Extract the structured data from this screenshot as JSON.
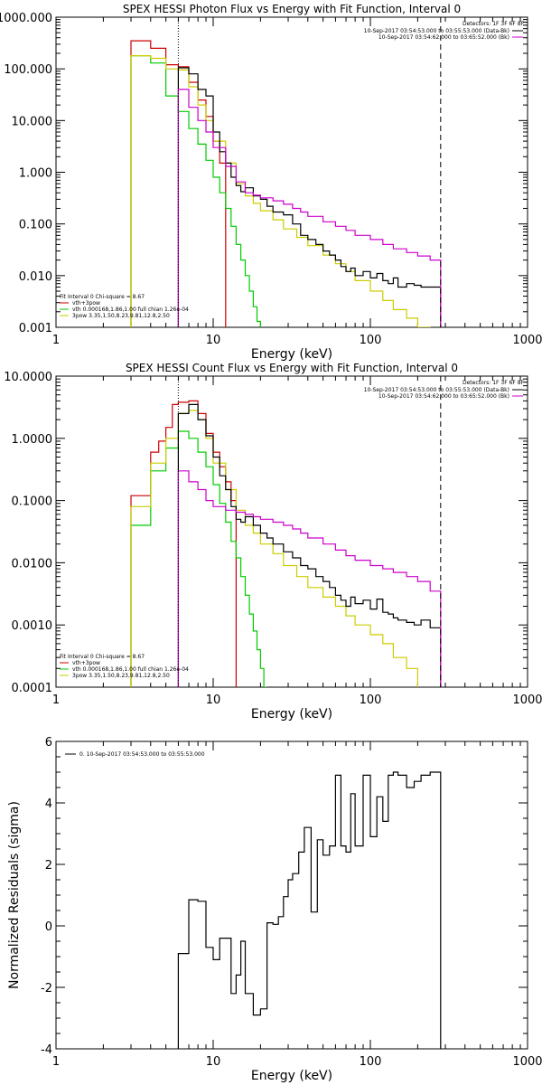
{
  "chart_data": [
    {
      "type": "line",
      "title": "SPEX HESSI Photon Flux vs Energy with Fit Function, Interval 0",
      "xlabel": "Energy (keV)",
      "ylabel": "",
      "xscale": "log",
      "yscale": "log",
      "xlim": [
        1,
        1000
      ],
      "ylim": [
        0.001,
        1000
      ],
      "x_tick_labels": [
        "1",
        "10",
        "100",
        "1000"
      ],
      "y_tick_labels": [
        "0.001",
        "0.010",
        "0.100",
        "1.000",
        "10.000",
        "100.000",
        "1000.000"
      ],
      "legend_top_right": {
        "header": "Detectors: 1F 3F 6F 8F",
        "entries": [
          {
            "text": "10-Sep-2017 03:54:53.000 to 03:55:53.000 (Data-Bk)",
            "color": "#000000"
          },
          {
            "text": "10-Sep-2017 03:54:62.000 to 03:65:52.000 (Bk)",
            "color": "#cc00cc"
          }
        ]
      },
      "legend_bottom_left": {
        "header": "Fit Interval 0   Chi-square = 8.67",
        "entries": [
          {
            "text": "vth+3pow",
            "color": "#cc0000"
          },
          {
            "text": "vth 0.000168,1.86,1.00  full chian 1.26e-04",
            "color": "#00cc00"
          },
          {
            "text": "3pow 3.35,1.50,8.23,9.81,12.8,2.50",
            "color": "#cccc00"
          }
        ]
      },
      "vlines": [
        {
          "x": 6,
          "style": "dotted",
          "color": "#000000"
        },
        {
          "x": 280,
          "style": "dashed",
          "color": "#000000"
        }
      ],
      "series": [
        {
          "name": "vth+3pow",
          "color": "#cc0000",
          "edges": [
            3,
            4,
            5,
            6,
            7,
            8,
            9,
            10,
            11,
            12
          ],
          "values": [
            350,
            250,
            120,
            110,
            55,
            25,
            12,
            4,
            1.5
          ]
        },
        {
          "name": "vth 0.000168,1.86,1.00  full chian 1.26e-04",
          "color": "#00cc00",
          "edges": [
            3,
            4,
            5,
            6,
            7,
            8,
            9,
            10,
            11,
            12,
            13,
            14,
            15,
            16,
            17,
            18,
            19,
            20,
            21,
            22
          ],
          "values": [
            180,
            130,
            30,
            15,
            7,
            3.5,
            1.7,
            0.8,
            0.4,
            0.2,
            0.09,
            0.04,
            0.02,
            0.01,
            0.005,
            0.0025,
            0.0013,
            0.0009,
            0.0005
          ]
        },
        {
          "name": "3pow 3.35,1.50,8.23,9.81,12.8,2.50",
          "color": "#cccc00",
          "edges": [
            3,
            4,
            5,
            6,
            7,
            8,
            9,
            10,
            12,
            14,
            16,
            18,
            20,
            24,
            28,
            34,
            40,
            50,
            60,
            70,
            80,
            100,
            120,
            140,
            170,
            200,
            240,
            280
          ],
          "values": [
            180,
            160,
            100,
            95,
            45,
            20,
            10,
            4,
            1.5,
            0.6,
            0.35,
            0.25,
            0.18,
            0.12,
            0.08,
            0.055,
            0.038,
            0.025,
            0.017,
            0.012,
            0.008,
            0.005,
            0.0033,
            0.0022,
            0.0015,
            0.001,
            0.0008
          ]
        },
        {
          "name": "10-Sep-2017 03:54:53.000 to 03:55:53.000 (Data-Bk)",
          "color": "#000000",
          "edges": [
            6,
            7,
            8,
            9,
            10,
            11,
            12,
            13,
            14,
            15,
            16,
            18,
            20,
            22,
            24,
            28,
            32,
            36,
            40,
            45,
            50,
            55,
            60,
            65,
            70,
            75,
            80,
            90,
            100,
            110,
            120,
            130,
            140,
            150,
            170,
            190,
            210,
            240,
            280
          ],
          "values": [
            105,
            80,
            40,
            30,
            6,
            2.5,
            1.5,
            0.8,
            0.55,
            0.42,
            0.5,
            0.35,
            0.3,
            0.22,
            0.17,
            0.15,
            0.1,
            0.06,
            0.05,
            0.04,
            0.03,
            0.025,
            0.02,
            0.015,
            0.012,
            0.014,
            0.01,
            0.012,
            0.009,
            0.011,
            0.008,
            0.007,
            0.009,
            0.006,
            0.007,
            0.0065,
            0.006,
            0.006
          ]
        },
        {
          "name": "10-Sep-2017 03:54:62.000 to 03:65:52.000 (Bk)",
          "color": "#cc00cc",
          "edges": [
            6,
            7,
            8,
            9,
            10,
            12,
            14,
            16,
            18,
            20,
            24,
            28,
            32,
            36,
            40,
            50,
            60,
            70,
            80,
            100,
            120,
            140,
            170,
            200,
            240,
            280
          ],
          "values": [
            40,
            18,
            10,
            6,
            3,
            1.3,
            0.65,
            0.4,
            0.36,
            0.32,
            0.28,
            0.24,
            0.2,
            0.17,
            0.14,
            0.11,
            0.09,
            0.075,
            0.06,
            0.05,
            0.04,
            0.033,
            0.028,
            0.024,
            0.02
          ]
        }
      ]
    },
    {
      "type": "line",
      "title": "SPEX HESSI Count Flux vs Energy with Fit Function, Interval 0",
      "xlabel": "Energy (keV)",
      "ylabel": "",
      "xscale": "log",
      "yscale": "log",
      "xlim": [
        1,
        1000
      ],
      "ylim": [
        0.0001,
        10
      ],
      "x_tick_labels": [
        "1",
        "10",
        "100",
        "1000"
      ],
      "y_tick_labels": [
        "0.0001",
        "0.0010",
        "0.0100",
        "0.1000",
        "1.0000",
        "10.0000"
      ],
      "legend_top_right": {
        "header": "Detectors: 1F 3F 6F 8F",
        "entries": [
          {
            "text": "10-Sep-2017 03:54:53.000 to 03:55:53.000 (Data-Bk)",
            "color": "#000000"
          },
          {
            "text": "10-Sep-2017 03:54:62.000 to 03:65:52.000 (Bk)",
            "color": "#cc00cc"
          }
        ]
      },
      "legend_bottom_left": {
        "header": "Fit Interval 0   Chi-square = 8.67",
        "entries": [
          {
            "text": "vth+3pow",
            "color": "#cc0000"
          },
          {
            "text": "vth 0.000168,1.86,1.00  full chian 1.26e-04",
            "color": "#00cc00"
          },
          {
            "text": "3pow 3.35,1.50,8.23,9.81,12.8,2.50",
            "color": "#cccc00"
          }
        ]
      },
      "vlines": [
        {
          "x": 6,
          "style": "dotted",
          "color": "#000000"
        },
        {
          "x": 280,
          "style": "dashed",
          "color": "#000000"
        }
      ],
      "series": [
        {
          "name": "vth+3pow",
          "color": "#cc0000",
          "edges": [
            3,
            3.5,
            4,
            4.5,
            5,
            5.5,
            6,
            7,
            8,
            9,
            10,
            11,
            12,
            13,
            14
          ],
          "values": [
            0.12,
            0.12,
            0.6,
            0.9,
            1.5,
            3.5,
            3.8,
            4.0,
            2.5,
            1.2,
            0.6,
            0.35,
            0.2,
            0.1
          ]
        },
        {
          "name": "vth 0.000168,1.86,1.00  full chian 1.26e-04",
          "color": "#00cc00",
          "edges": [
            3,
            4,
            5,
            6,
            7,
            8,
            9,
            10,
            11,
            12,
            13,
            14,
            15,
            16,
            17,
            18,
            19,
            20,
            21,
            22
          ],
          "values": [
            0.04,
            0.3,
            0.7,
            1.3,
            1.0,
            0.6,
            0.35,
            0.18,
            0.09,
            0.045,
            0.022,
            0.012,
            0.006,
            0.003,
            0.0015,
            0.0008,
            0.0004,
            0.0002,
            0.0001
          ]
        },
        {
          "name": "3pow 3.35,1.50,8.23,9.81,12.8,2.50",
          "color": "#cccc00",
          "edges": [
            3,
            4,
            5,
            6,
            7,
            8,
            9,
            10,
            12,
            14,
            16,
            18,
            20,
            24,
            28,
            34,
            40,
            50,
            60,
            70,
            80,
            100,
            120,
            140,
            170,
            200
          ],
          "values": [
            0.08,
            0.4,
            1.0,
            2.5,
            2.8,
            2.0,
            1.0,
            0.4,
            0.15,
            0.07,
            0.04,
            0.03,
            0.02,
            0.014,
            0.009,
            0.006,
            0.004,
            0.0028,
            0.002,
            0.0014,
            0.001,
            0.0007,
            0.0005,
            0.0003,
            0.0002
          ]
        },
        {
          "name": "10-Sep-2017 03:54:53.000 to 03:55:53.000 (Data-Bk)",
          "color": "#000000",
          "edges": [
            6,
            7,
            8,
            9,
            10,
            11,
            12,
            13,
            14,
            15,
            16,
            18,
            20,
            22,
            24,
            28,
            32,
            36,
            40,
            45,
            50,
            55,
            60,
            65,
            70,
            75,
            80,
            90,
            100,
            110,
            120,
            130,
            140,
            150,
            170,
            190,
            210,
            240,
            280
          ],
          "values": [
            2.5,
            3.5,
            2.0,
            1.1,
            0.5,
            0.25,
            0.15,
            0.08,
            0.05,
            0.045,
            0.055,
            0.04,
            0.03,
            0.025,
            0.02,
            0.015,
            0.012,
            0.009,
            0.008,
            0.006,
            0.005,
            0.004,
            0.003,
            0.0025,
            0.002,
            0.0028,
            0.0022,
            0.0025,
            0.0018,
            0.0026,
            0.0016,
            0.0015,
            0.0013,
            0.0012,
            0.0011,
            0.001,
            0.0012,
            0.0009
          ]
        },
        {
          "name": "10-Sep-2017 03:54:62.000 to 03:65:52.000 (Bk)",
          "color": "#cc00cc",
          "edges": [
            6,
            7,
            8,
            9,
            10,
            12,
            14,
            16,
            18,
            20,
            24,
            28,
            32,
            36,
            40,
            50,
            60,
            70,
            80,
            100,
            120,
            140,
            170,
            200,
            240,
            280
          ],
          "values": [
            0.3,
            0.2,
            0.15,
            0.1,
            0.08,
            0.07,
            0.065,
            0.06,
            0.055,
            0.05,
            0.045,
            0.04,
            0.035,
            0.03,
            0.025,
            0.02,
            0.016,
            0.013,
            0.011,
            0.009,
            0.008,
            0.007,
            0.006,
            0.005,
            0.0035
          ]
        }
      ]
    },
    {
      "type": "line",
      "title": "",
      "xlabel": "Energy (keV)",
      "ylabel": "Normalized Residuals (sigma)",
      "xscale": "log",
      "yscale": "linear",
      "xlim": [
        1,
        1000
      ],
      "ylim": [
        -4,
        6
      ],
      "x_tick_labels": [
        "1",
        "10",
        "100",
        "1000"
      ],
      "y_tick_labels": [
        "-4",
        "-2",
        "0",
        "2",
        "4",
        "6"
      ],
      "legend_top_left": {
        "entries": [
          {
            "text": "0. 10-Sep-2017 03:54:53.000 to 03:55:53.000",
            "color": "#000000"
          }
        ]
      },
      "series": [
        {
          "name": "0. 10-Sep-2017 03:54:53.000 to 03:55:53.000",
          "color": "#000000",
          "edges": [
            6,
            7,
            8,
            9,
            10,
            11,
            12,
            13,
            14,
            15,
            16,
            18,
            20,
            22,
            24,
            26,
            28,
            30,
            32,
            35,
            38,
            42,
            46,
            50,
            55,
            60,
            65,
            70,
            75,
            80,
            90,
            100,
            110,
            120,
            130,
            140,
            150,
            170,
            190,
            210,
            240,
            280
          ],
          "values": [
            -0.9,
            0.85,
            0.8,
            -0.7,
            -1.1,
            -0.4,
            -0.4,
            -2.2,
            -1.6,
            -0.5,
            -2.2,
            -2.9,
            -2.7,
            0.1,
            0.05,
            0.3,
            0.95,
            1.5,
            1.7,
            2.4,
            3.2,
            0.45,
            2.8,
            2.3,
            2.6,
            4.9,
            2.6,
            2.4,
            4.3,
            2.6,
            4.9,
            2.9,
            4.2,
            3.4,
            4.9,
            5.0,
            4.9,
            4.5,
            4.7,
            4.9,
            5.0
          ]
        }
      ]
    }
  ]
}
